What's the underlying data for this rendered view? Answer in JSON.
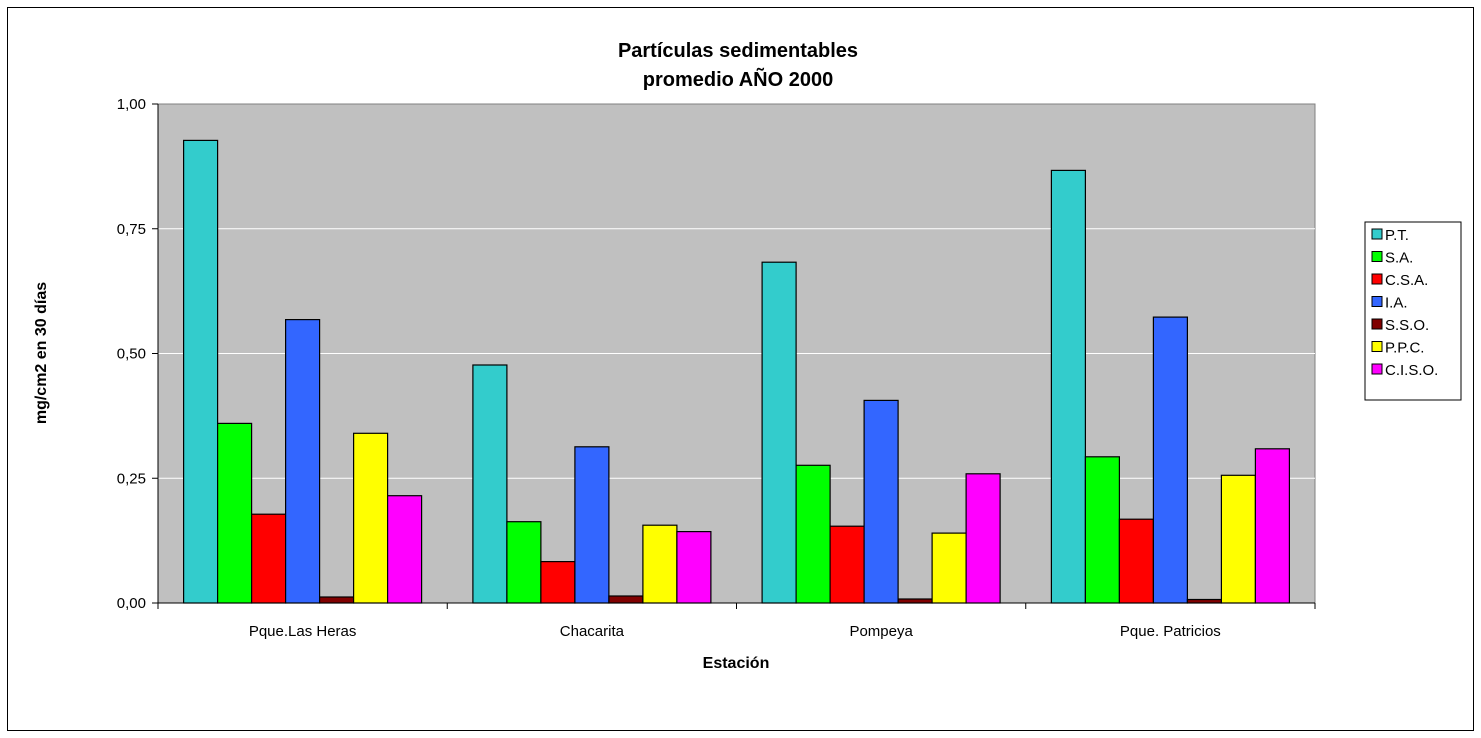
{
  "chart_data": {
    "type": "bar",
    "title": "Partículas sedimentables",
    "subtitle": "promedio  AÑO 2000",
    "xlabel": "Estación",
    "ylabel": "mg/cm2 en 30 días",
    "ylim": [
      0,
      1
    ],
    "yticks": [
      "0,00",
      "0,25",
      "0,50",
      "0,75",
      "1,00"
    ],
    "ytick_values": [
      0,
      0.25,
      0.5,
      0.75,
      1.0
    ],
    "grid": true,
    "legend_position": "right",
    "plot_background": "#c0c0c0",
    "categories": [
      "Pque.Las Heras",
      "Chacarita",
      "Pompeya",
      "Pque. Patricios"
    ],
    "series": [
      {
        "name": "P.T.",
        "color": "#33cccc",
        "values": [
          0.927,
          0.477,
          0.683,
          0.867
        ]
      },
      {
        "name": "S.A.",
        "color": "#00ff00",
        "values": [
          0.36,
          0.163,
          0.276,
          0.293
        ]
      },
      {
        "name": "C.S.A.",
        "color": "#ff0000",
        "values": [
          0.178,
          0.083,
          0.154,
          0.168
        ]
      },
      {
        "name": "I.A.",
        "color": "#3366ff",
        "values": [
          0.568,
          0.313,
          0.406,
          0.573
        ]
      },
      {
        "name": "S.S.O.",
        "color": "#800000",
        "values": [
          0.012,
          0.014,
          0.008,
          0.007
        ]
      },
      {
        "name": "P.P.C.",
        "color": "#ffff00",
        "values": [
          0.34,
          0.156,
          0.14,
          0.256
        ]
      },
      {
        "name": "C.I.S.O.",
        "color": "#ff00ff",
        "values": [
          0.215,
          0.143,
          0.259,
          0.309
        ]
      }
    ]
  }
}
